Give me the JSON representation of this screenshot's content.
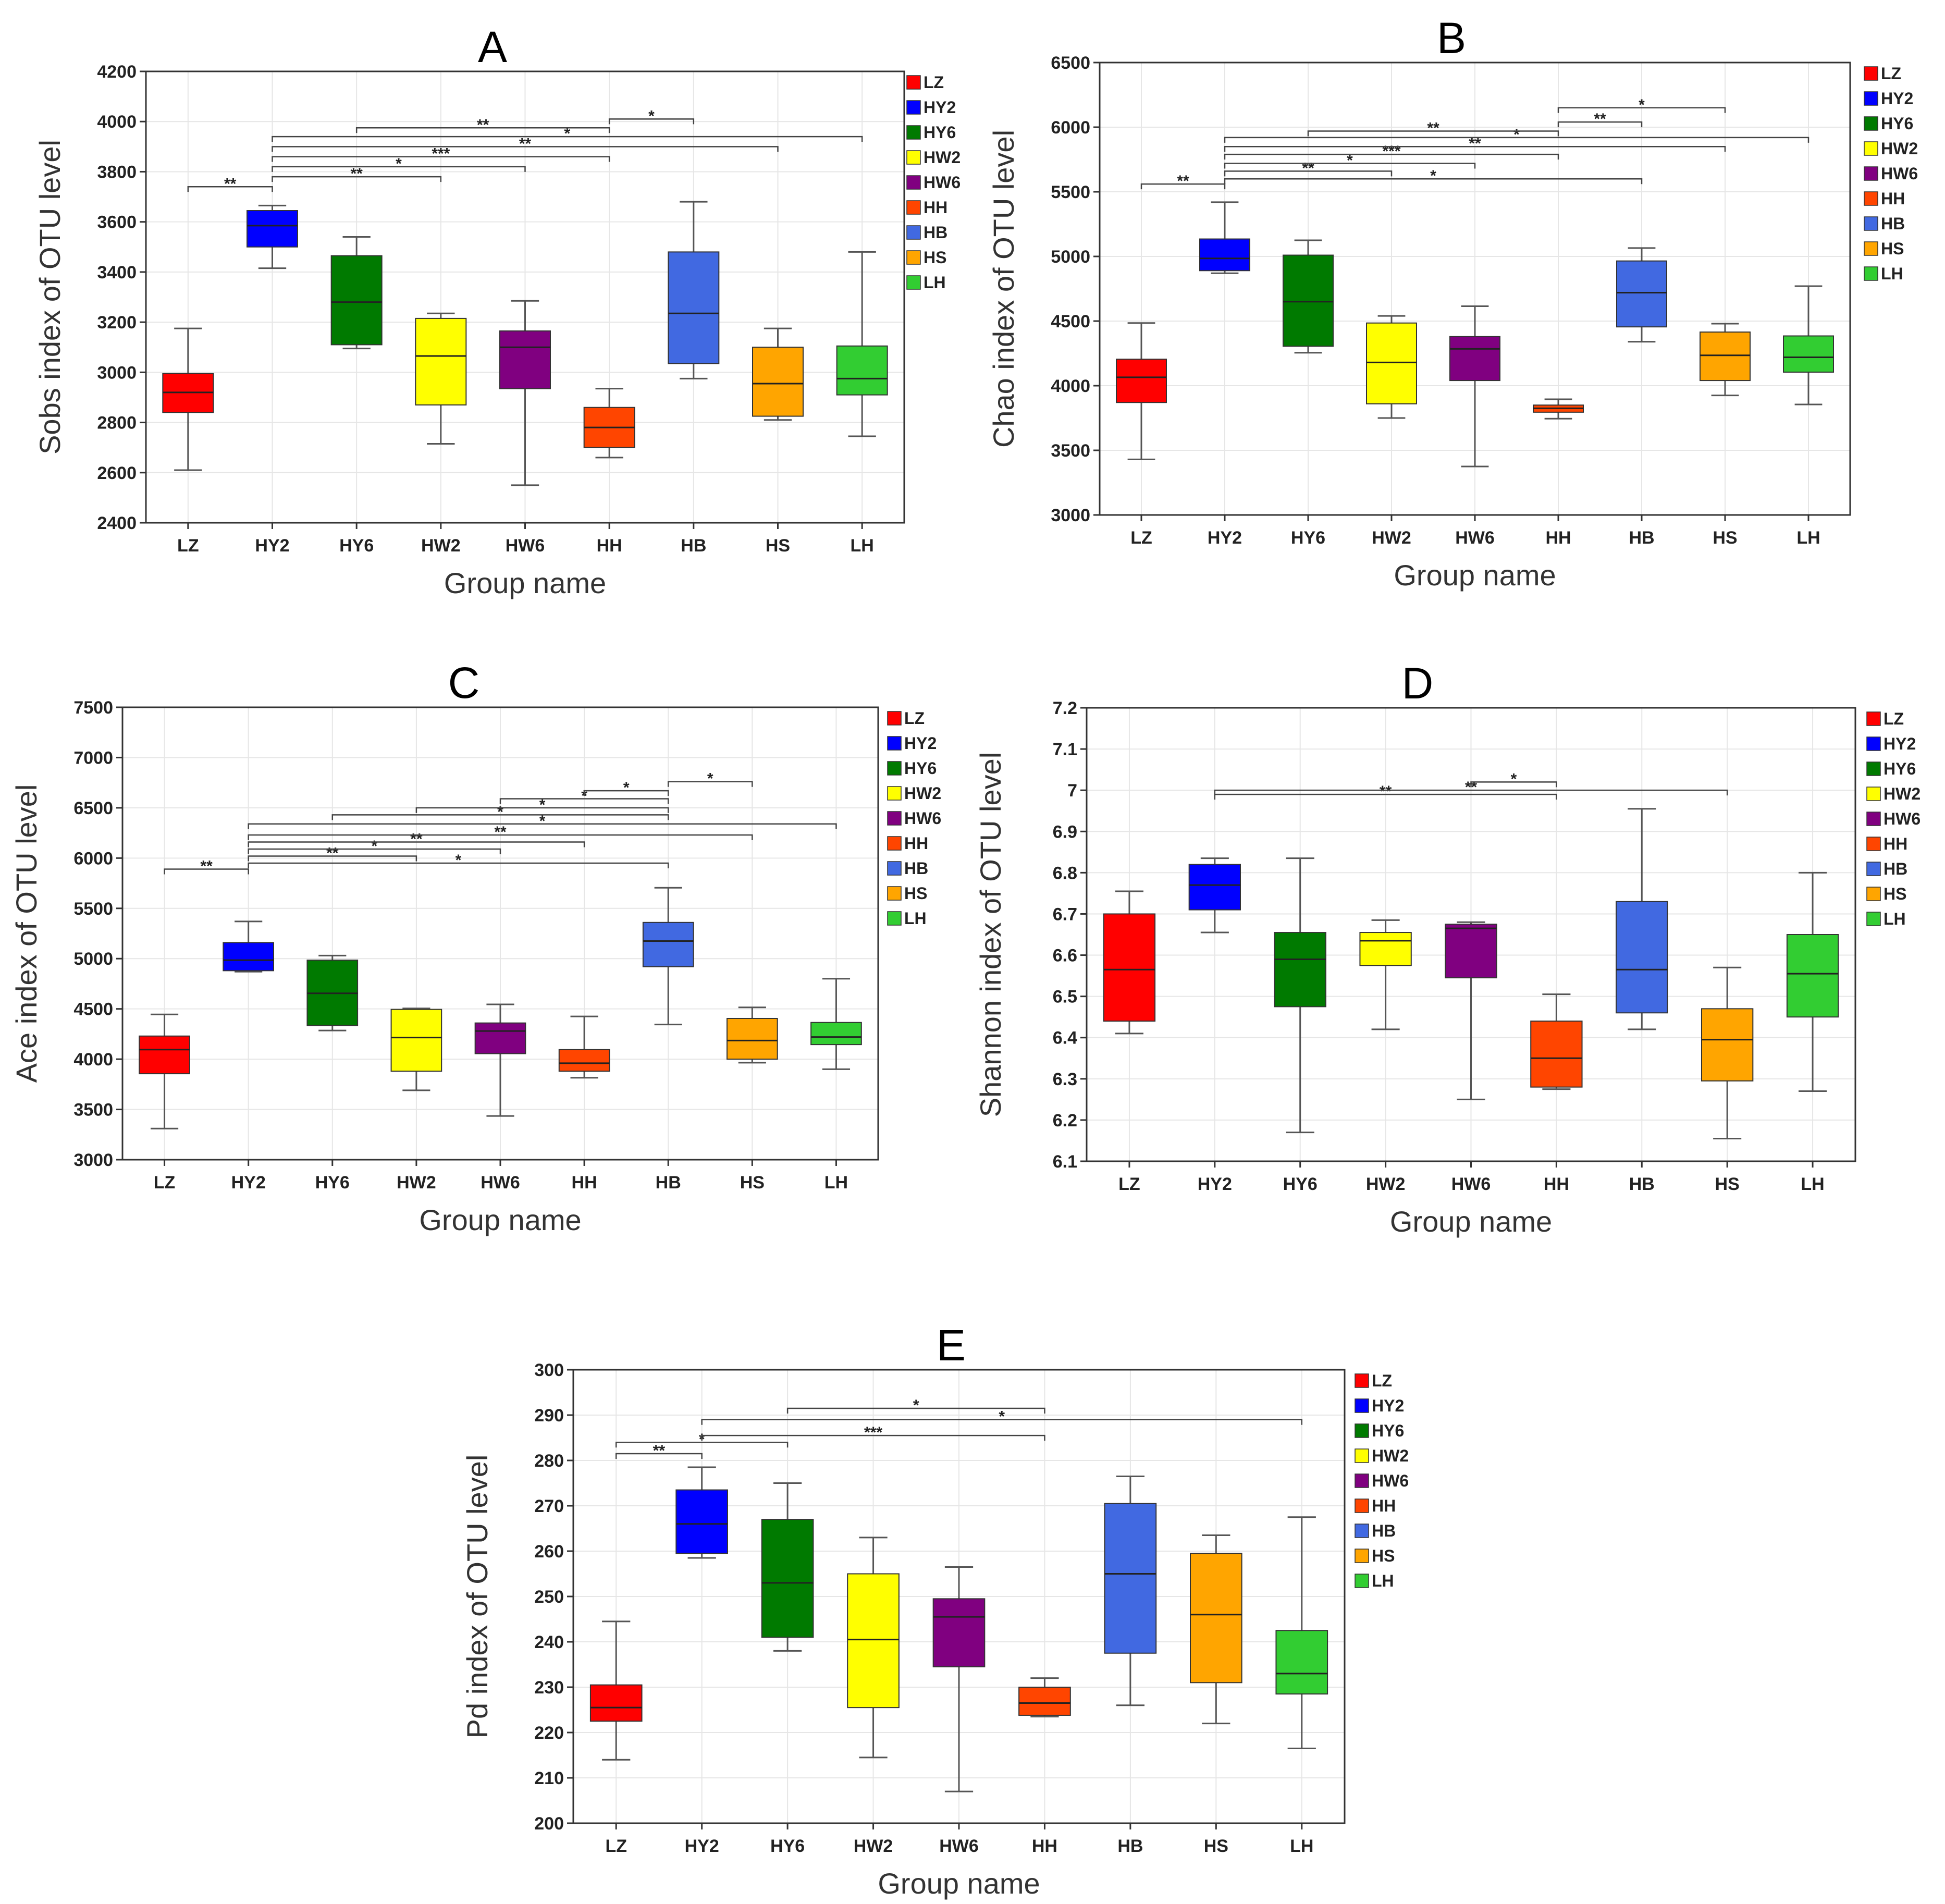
{
  "figure": {
    "groups": [
      "LZ",
      "HY2",
      "HY6",
      "HW2",
      "HW6",
      "HH",
      "HB",
      "HS",
      "LH"
    ],
    "colors": {
      "LZ": "#ff0000",
      "HY2": "#0000ff",
      "HY6": "#007a00",
      "HW2": "#ffff00",
      "HW6": "#800080",
      "HH": "#ff4500",
      "HB": "#4169e1",
      "HS": "#ffa500",
      "LH": "#32cd32"
    },
    "xlabel": "Group name"
  },
  "chart_data": [
    {
      "type": "box",
      "panel": "A",
      "ylabel": "Sobs index of OTU level",
      "ylim": [
        2400,
        4200
      ],
      "yticks": [
        2400,
        2600,
        2800,
        3000,
        3200,
        3400,
        3600,
        3800,
        4000,
        4200
      ],
      "boxes": [
        {
          "group": "LZ",
          "min": 2610,
          "q1": 2840,
          "median": 2920,
          "q3": 2995,
          "max": 3175
        },
        {
          "group": "HY2",
          "min": 3415,
          "q1": 3500,
          "median": 3585,
          "q3": 3645,
          "max": 3665
        },
        {
          "group": "HY6",
          "min": 3095,
          "q1": 3110,
          "median": 3280,
          "q3": 3465,
          "max": 3540
        },
        {
          "group": "HW2",
          "min": 2715,
          "q1": 2870,
          "median": 3065,
          "q3": 3215,
          "max": 3235
        },
        {
          "group": "HW6",
          "min": 2550,
          "q1": 2935,
          "median": 3100,
          "q3": 3165,
          "max": 3285
        },
        {
          "group": "HH",
          "min": 2660,
          "q1": 2700,
          "median": 2780,
          "q3": 2860,
          "max": 2935
        },
        {
          "group": "HB",
          "min": 2975,
          "q1": 3035,
          "median": 3235,
          "q3": 3480,
          "max": 3680
        },
        {
          "group": "HS",
          "min": 2810,
          "q1": 2825,
          "median": 2955,
          "q3": 3100,
          "max": 3175
        },
        {
          "group": "LH",
          "min": 2745,
          "q1": 2910,
          "median": 2975,
          "q3": 3105,
          "max": 3480
        }
      ],
      "significance": [
        {
          "from": "LZ",
          "to": "HY2",
          "label": "**",
          "value": 3740
        },
        {
          "from": "HY2",
          "to": "HW2",
          "label": "**",
          "value": 3780
        },
        {
          "from": "HY2",
          "to": "HW6",
          "label": "*",
          "value": 3820
        },
        {
          "from": "HY2",
          "to": "HH",
          "label": "***",
          "value": 3860
        },
        {
          "from": "HY2",
          "to": "HS",
          "label": "**",
          "value": 3900
        },
        {
          "from": "HY2",
          "to": "LH",
          "label": "*",
          "value": 3940
        },
        {
          "from": "HY6",
          "to": "HH",
          "label": "**",
          "value": 3975
        },
        {
          "from": "HH",
          "to": "HB",
          "label": "*",
          "value": 4010
        }
      ]
    },
    {
      "type": "box",
      "panel": "B",
      "ylabel": "Chao index of OTU level",
      "ylim": [
        3000,
        6500
      ],
      "yticks": [
        3000,
        3500,
        4000,
        4500,
        5000,
        5500,
        6000,
        6500
      ],
      "boxes": [
        {
          "group": "LZ",
          "min": 3430,
          "q1": 3870,
          "median": 4065,
          "q3": 4205,
          "max": 4485
        },
        {
          "group": "HY2",
          "min": 4870,
          "q1": 4890,
          "median": 4985,
          "q3": 5135,
          "max": 5420
        },
        {
          "group": "HY6",
          "min": 4255,
          "q1": 4305,
          "median": 4650,
          "q3": 5010,
          "max": 5125
        },
        {
          "group": "HW2",
          "min": 3750,
          "q1": 3860,
          "median": 4180,
          "q3": 4485,
          "max": 4540
        },
        {
          "group": "HW6",
          "min": 3375,
          "q1": 4040,
          "median": 4285,
          "q3": 4380,
          "max": 4615
        },
        {
          "group": "HH",
          "min": 3745,
          "q1": 3795,
          "median": 3825,
          "q3": 3850,
          "max": 3895
        },
        {
          "group": "HB",
          "min": 4340,
          "q1": 4455,
          "median": 4720,
          "q3": 4965,
          "max": 5065
        },
        {
          "group": "HS",
          "min": 3925,
          "q1": 4040,
          "median": 4235,
          "q3": 4415,
          "max": 4480
        },
        {
          "group": "LH",
          "min": 3855,
          "q1": 4105,
          "median": 4220,
          "q3": 4385,
          "max": 4770
        }
      ],
      "significance": [
        {
          "from": "LZ",
          "to": "HY2",
          "label": "**",
          "value": 5560
        },
        {
          "from": "HY2",
          "to": "HB",
          "label": "*",
          "value": 5600
        },
        {
          "from": "HY2",
          "to": "HW2",
          "label": "**",
          "value": 5660
        },
        {
          "from": "HY2",
          "to": "HW6",
          "label": "*",
          "value": 5720
        },
        {
          "from": "HY2",
          "to": "HH",
          "label": "***",
          "value": 5790
        },
        {
          "from": "HY2",
          "to": "HS",
          "label": "**",
          "value": 5850
        },
        {
          "from": "HY2",
          "to": "LH",
          "label": "*",
          "value": 5920
        },
        {
          "from": "HY6",
          "to": "HH",
          "label": "**",
          "value": 5970
        },
        {
          "from": "HH",
          "to": "HB",
          "label": "**",
          "value": 6040
        },
        {
          "from": "HH",
          "to": "HS",
          "label": "*",
          "value": 6150
        }
      ]
    },
    {
      "type": "box",
      "panel": "C",
      "ylabel": "Ace index of OTU level",
      "ylim": [
        3000,
        7500
      ],
      "yticks": [
        3000,
        3500,
        4000,
        4500,
        5000,
        5500,
        6000,
        6500,
        7000,
        7500
      ],
      "boxes": [
        {
          "group": "LZ",
          "min": 3310,
          "q1": 3855,
          "median": 4095,
          "q3": 4230,
          "max": 4445
        },
        {
          "group": "HY2",
          "min": 4870,
          "q1": 4880,
          "median": 4985,
          "q3": 5160,
          "max": 5370
        },
        {
          "group": "HY6",
          "min": 4285,
          "q1": 4335,
          "median": 4655,
          "q3": 4985,
          "max": 5030
        },
        {
          "group": "HW2",
          "min": 3690,
          "q1": 3880,
          "median": 4215,
          "q3": 4495,
          "max": 4505
        },
        {
          "group": "HW6",
          "min": 3435,
          "q1": 4055,
          "median": 4280,
          "q3": 4360,
          "max": 4545
        },
        {
          "group": "HH",
          "min": 3815,
          "q1": 3880,
          "median": 3960,
          "q3": 4095,
          "max": 4425
        },
        {
          "group": "HB",
          "min": 4345,
          "q1": 4920,
          "median": 5175,
          "q3": 5360,
          "max": 5705
        },
        {
          "group": "HS",
          "min": 3965,
          "q1": 4000,
          "median": 4185,
          "q3": 4405,
          "max": 4515
        },
        {
          "group": "LH",
          "min": 3900,
          "q1": 4145,
          "median": 4220,
          "q3": 4365,
          "max": 4800
        }
      ],
      "significance": [
        {
          "from": "LZ",
          "to": "HY2",
          "label": "**",
          "value": 5890
        },
        {
          "from": "HY2",
          "to": "HB",
          "label": "*",
          "value": 5950
        },
        {
          "from": "HY2",
          "to": "HW2",
          "label": "**",
          "value": 6020
        },
        {
          "from": "HY2",
          "to": "HW6",
          "label": "*",
          "value": 6090
        },
        {
          "from": "HY2",
          "to": "HH",
          "label": "**",
          "value": 6160
        },
        {
          "from": "HY2",
          "to": "HS",
          "label": "**",
          "value": 6230
        },
        {
          "from": "HY2",
          "to": "LH",
          "label": "*",
          "value": 6340
        },
        {
          "from": "HY6",
          "to": "HB",
          "label": "*",
          "value": 6430
        },
        {
          "from": "HW2",
          "to": "HB",
          "label": "*",
          "value": 6500
        },
        {
          "from": "HW6",
          "to": "HB",
          "label": "*",
          "value": 6590
        },
        {
          "from": "HH",
          "to": "HB",
          "label": "*",
          "value": 6670
        },
        {
          "from": "HB",
          "to": "HS",
          "label": "*",
          "value": 6760
        }
      ]
    },
    {
      "type": "box",
      "panel": "D",
      "ylabel": "Shannon index of OTU level",
      "ylim": [
        6.1,
        7.2
      ],
      "yticks": [
        6.1,
        6.2,
        6.3,
        6.4,
        6.5,
        6.6,
        6.7,
        6.8,
        6.9,
        7.0,
        7.1,
        7.2
      ],
      "ytick_labels": [
        "6.1",
        "6.2",
        "6.3",
        "6.4",
        "6.5",
        "6.6",
        "6.7",
        "6.8",
        "6.9",
        "7",
        "7.1",
        "7.2"
      ],
      "boxes": [
        {
          "group": "LZ",
          "min": 6.41,
          "q1": 6.44,
          "median": 6.565,
          "q3": 6.7,
          "max": 6.755
        },
        {
          "group": "HY2",
          "min": 6.655,
          "q1": 6.71,
          "median": 6.77,
          "q3": 6.82,
          "max": 6.835
        },
        {
          "group": "HY6",
          "min": 6.17,
          "q1": 6.475,
          "median": 6.59,
          "q3": 6.655,
          "max": 6.835
        },
        {
          "group": "HW2",
          "min": 6.42,
          "q1": 6.575,
          "median": 6.635,
          "q3": 6.655,
          "max": 6.685
        },
        {
          "group": "HW6",
          "min": 6.25,
          "q1": 6.545,
          "median": 6.665,
          "q3": 6.675,
          "max": 6.68
        },
        {
          "group": "HH",
          "min": 6.275,
          "q1": 6.28,
          "median": 6.35,
          "q3": 6.44,
          "max": 6.505
        },
        {
          "group": "HB",
          "min": 6.42,
          "q1": 6.46,
          "median": 6.565,
          "q3": 6.73,
          "max": 6.955
        },
        {
          "group": "HS",
          "min": 6.155,
          "q1": 6.295,
          "median": 6.395,
          "q3": 6.47,
          "max": 6.57
        },
        {
          "group": "LH",
          "min": 6.27,
          "q1": 6.45,
          "median": 6.555,
          "q3": 6.65,
          "max": 6.8
        }
      ],
      "significance": [
        {
          "from": "HY2",
          "to": "HH",
          "label": "**",
          "value": 6.99
        },
        {
          "from": "HY2",
          "to": "HS",
          "label": "**",
          "value": 7.0
        },
        {
          "from": "HW6",
          "to": "HH",
          "label": "*",
          "value": 7.02
        }
      ]
    },
    {
      "type": "box",
      "panel": "E",
      "ylabel": "Pd index of OTU level",
      "ylim": [
        200,
        300
      ],
      "yticks": [
        200,
        210,
        220,
        230,
        240,
        250,
        260,
        270,
        280,
        290,
        300
      ],
      "boxes": [
        {
          "group": "LZ",
          "min": 214,
          "q1": 222.5,
          "median": 225.5,
          "q3": 230.5,
          "max": 244.5
        },
        {
          "group": "HY2",
          "min": 258.5,
          "q1": 259.5,
          "median": 266,
          "q3": 273.5,
          "max": 278.5
        },
        {
          "group": "HY6",
          "min": 238,
          "q1": 241,
          "median": 253,
          "q3": 267,
          "max": 275
        },
        {
          "group": "HW2",
          "min": 214.5,
          "q1": 225.5,
          "median": 240.5,
          "q3": 255,
          "max": 263
        },
        {
          "group": "HW6",
          "min": 207,
          "q1": 234.5,
          "median": 245.5,
          "q3": 249.5,
          "max": 256.5
        },
        {
          "group": "HH",
          "min": 223.5,
          "q1": 223.8,
          "median": 226.5,
          "q3": 230,
          "max": 232
        },
        {
          "group": "HB",
          "min": 226,
          "q1": 237.5,
          "median": 255,
          "q3": 270.5,
          "max": 276.5
        },
        {
          "group": "HS",
          "min": 222,
          "q1": 231,
          "median": 246,
          "q3": 259.5,
          "max": 263.5
        },
        {
          "group": "LH",
          "min": 216.5,
          "q1": 228.5,
          "median": 233,
          "q3": 242.5,
          "max": 267.5
        }
      ],
      "significance": [
        {
          "from": "LZ",
          "to": "HY2",
          "label": "**",
          "value": 281.5
        },
        {
          "from": "LZ",
          "to": "HY6",
          "label": "*",
          "value": 284
        },
        {
          "from": "HY2",
          "to": "HH",
          "label": "***",
          "value": 285.5
        },
        {
          "from": "HY2",
          "to": "LH",
          "label": "*",
          "value": 289
        },
        {
          "from": "HY6",
          "to": "HH",
          "label": "*",
          "value": 291.5
        }
      ]
    }
  ]
}
